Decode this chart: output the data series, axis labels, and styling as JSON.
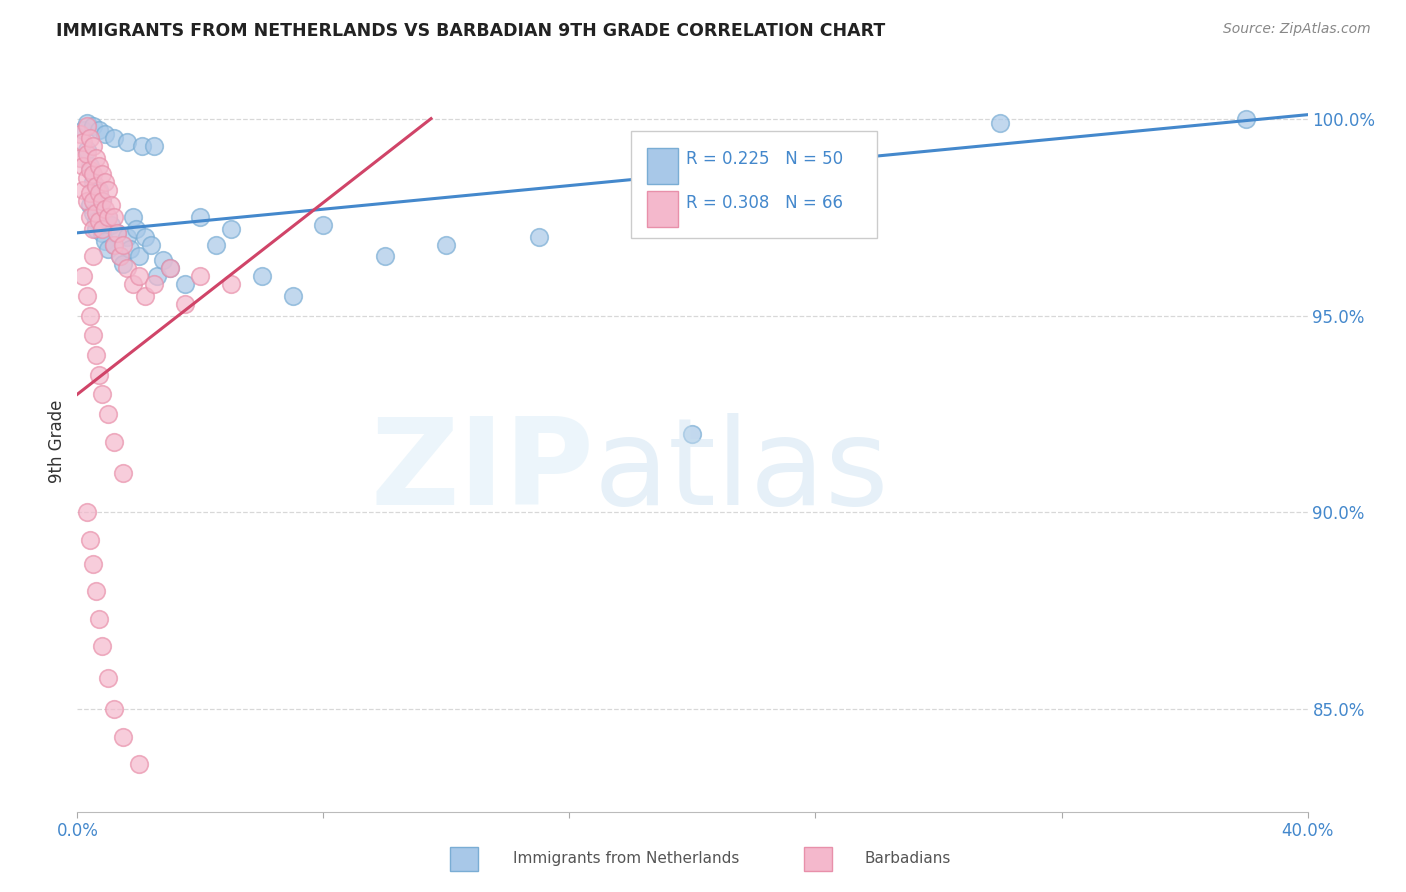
{
  "title": "IMMIGRANTS FROM NETHERLANDS VS BARBADIAN 9TH GRADE CORRELATION CHART",
  "source": "Source: ZipAtlas.com",
  "ylabel": "9th Grade",
  "ylabel_right_ticks": [
    "100.0%",
    "95.0%",
    "90.0%",
    "85.0%"
  ],
  "ylabel_right_values": [
    1.0,
    0.95,
    0.9,
    0.85
  ],
  "xlim": [
    0.0,
    0.4
  ],
  "ylim": [
    0.824,
    1.012
  ],
  "legend_blue_r": "R = 0.225",
  "legend_blue_n": "N = 50",
  "legend_pink_r": "R = 0.308",
  "legend_pink_n": "N = 66",
  "blue_color": "#a8c8e8",
  "pink_color": "#f4b8cc",
  "blue_edge_color": "#7aadd4",
  "pink_edge_color": "#e890aa",
  "blue_line_color": "#4488cc",
  "pink_line_color": "#d04468",
  "axis_label_color": "#4488cc",
  "grid_color": "#d8d8d8",
  "blue_scatter_x": [
    0.002,
    0.003,
    0.004,
    0.004,
    0.005,
    0.005,
    0.006,
    0.006,
    0.007,
    0.008,
    0.008,
    0.009,
    0.01,
    0.01,
    0.011,
    0.012,
    0.013,
    0.014,
    0.015,
    0.016,
    0.017,
    0.018,
    0.019,
    0.02,
    0.022,
    0.024,
    0.026,
    0.028,
    0.03,
    0.035,
    0.04,
    0.045,
    0.05,
    0.06,
    0.07,
    0.08,
    0.1,
    0.12,
    0.15,
    0.2,
    0.003,
    0.005,
    0.007,
    0.009,
    0.012,
    0.016,
    0.021,
    0.025,
    0.3,
    0.38
  ],
  "blue_scatter_y": [
    0.997,
    0.992,
    0.988,
    0.978,
    0.984,
    0.976,
    0.974,
    0.972,
    0.982,
    0.979,
    0.971,
    0.969,
    0.975,
    0.967,
    0.973,
    0.968,
    0.971,
    0.965,
    0.963,
    0.97,
    0.967,
    0.975,
    0.972,
    0.965,
    0.97,
    0.968,
    0.96,
    0.964,
    0.962,
    0.958,
    0.975,
    0.968,
    0.972,
    0.96,
    0.955,
    0.973,
    0.965,
    0.968,
    0.97,
    0.92,
    0.999,
    0.998,
    0.997,
    0.996,
    0.995,
    0.994,
    0.993,
    0.993,
    0.999,
    1.0
  ],
  "pink_scatter_x": [
    0.001,
    0.001,
    0.002,
    0.002,
    0.002,
    0.003,
    0.003,
    0.003,
    0.003,
    0.004,
    0.004,
    0.004,
    0.004,
    0.005,
    0.005,
    0.005,
    0.005,
    0.005,
    0.006,
    0.006,
    0.006,
    0.007,
    0.007,
    0.007,
    0.008,
    0.008,
    0.008,
    0.009,
    0.009,
    0.01,
    0.01,
    0.011,
    0.012,
    0.012,
    0.013,
    0.014,
    0.015,
    0.016,
    0.018,
    0.02,
    0.022,
    0.025,
    0.03,
    0.035,
    0.04,
    0.05,
    0.002,
    0.003,
    0.004,
    0.005,
    0.006,
    0.007,
    0.008,
    0.01,
    0.012,
    0.015,
    0.003,
    0.004,
    0.005,
    0.006,
    0.007,
    0.008,
    0.01,
    0.012,
    0.015,
    0.02
  ],
  "pink_scatter_y": [
    0.996,
    0.99,
    0.994,
    0.988,
    0.982,
    0.998,
    0.991,
    0.985,
    0.979,
    0.995,
    0.987,
    0.981,
    0.975,
    0.993,
    0.986,
    0.979,
    0.972,
    0.965,
    0.99,
    0.983,
    0.976,
    0.988,
    0.981,
    0.974,
    0.986,
    0.979,
    0.972,
    0.984,
    0.977,
    0.982,
    0.975,
    0.978,
    0.975,
    0.968,
    0.971,
    0.965,
    0.968,
    0.962,
    0.958,
    0.96,
    0.955,
    0.958,
    0.962,
    0.953,
    0.96,
    0.958,
    0.96,
    0.955,
    0.95,
    0.945,
    0.94,
    0.935,
    0.93,
    0.925,
    0.918,
    0.91,
    0.9,
    0.893,
    0.887,
    0.88,
    0.873,
    0.866,
    0.858,
    0.85,
    0.843,
    0.836
  ],
  "blue_trendline_x": [
    0.0,
    0.4
  ],
  "blue_trendline_y": [
    0.971,
    1.001
  ],
  "pink_trendline_x": [
    0.0,
    0.115
  ],
  "pink_trendline_y": [
    0.93,
    1.0
  ]
}
